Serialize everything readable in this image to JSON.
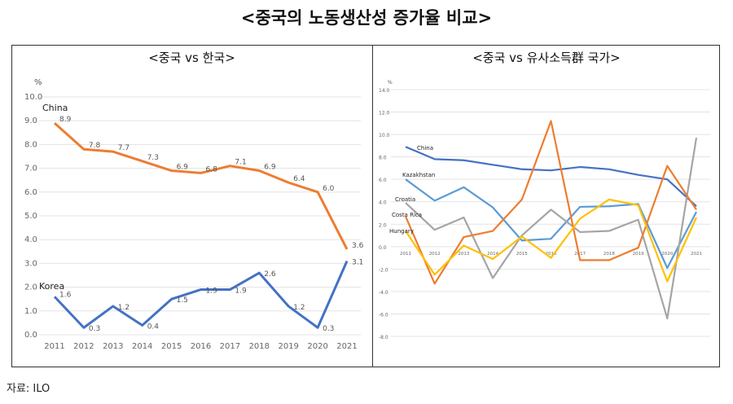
{
  "title": "<중국의 노동생산성 증가율 비교>",
  "source": "자료: ILO",
  "chart_data": [
    {
      "type": "line",
      "title": "<중국 vs 한국>",
      "ylabel": "%",
      "ylim": [
        0,
        10
      ],
      "yticks": [
        "0.0",
        "1.0",
        "2.0",
        "3.0",
        "4.0",
        "5.0",
        "6.0",
        "7.0",
        "8.0",
        "9.0",
        "10.0"
      ],
      "grid": true,
      "categories": [
        "2011",
        "2012",
        "2013",
        "2014",
        "2015",
        "2016",
        "2017",
        "2018",
        "2019",
        "2020",
        "2021"
      ],
      "series": [
        {
          "name": "China",
          "color": "#ED7D31",
          "values": [
            8.9,
            7.8,
            7.7,
            7.3,
            6.9,
            6.8,
            7.1,
            6.9,
            6.4,
            6.0,
            3.6
          ],
          "labels": [
            "8.9",
            "7.8",
            "7.7",
            "7.3",
            "6.9",
            "6.8",
            "7.1",
            "6.9",
            "6.4",
            "6.0",
            "3.6"
          ]
        },
        {
          "name": "Korea",
          "color": "#4472C4",
          "values": [
            1.6,
            0.3,
            1.2,
            0.4,
            1.5,
            1.9,
            1.9,
            2.6,
            1.2,
            0.3,
            3.1
          ],
          "labels": [
            "1.6",
            "0.3",
            "1.2",
            "0.4",
            "1.5",
            "1.9",
            "1.9",
            "2.6",
            "1.2",
            "0.3",
            "3.1"
          ]
        }
      ]
    },
    {
      "type": "line",
      "title": "<중국 vs 유사소득群 국가>",
      "ylabel": "%",
      "ylim": [
        -8,
        14
      ],
      "yticks": [
        "-8.0",
        "-6.0",
        "-4.0",
        "-2.0",
        "0.0",
        "2.0",
        "4.0",
        "6.0",
        "8.0",
        "10.0",
        "12.0",
        "14.0"
      ],
      "grid": true,
      "categories": [
        "2011",
        "2012",
        "2013",
        "2014",
        "2015",
        "2016",
        "2017",
        "2018",
        "2019",
        "2020",
        "2021"
      ],
      "series": [
        {
          "name": "China",
          "color": "#4472C4",
          "values": [
            8.9,
            7.8,
            7.7,
            7.3,
            6.9,
            6.8,
            7.1,
            6.9,
            6.4,
            6.0,
            3.6
          ]
        },
        {
          "name": "Kazakhstan",
          "color": "#5B9BD5",
          "values": [
            6.0,
            4.1,
            5.3,
            3.5,
            0.55,
            0.7,
            3.55,
            3.6,
            3.8,
            -1.9,
            3.1
          ]
        },
        {
          "name": "Croatia",
          "color": "#A5A5A5",
          "values": [
            3.9,
            1.5,
            2.6,
            -2.8,
            1.0,
            3.3,
            1.3,
            1.4,
            2.4,
            -6.4,
            9.7
          ]
        },
        {
          "name": "Costa Rica",
          "color": "#ED7D31",
          "values": [
            2.7,
            -3.3,
            0.85,
            1.4,
            4.2,
            11.2,
            -1.2,
            -1.2,
            -0.1,
            7.2,
            3.3
          ]
        },
        {
          "name": "Hungary",
          "color": "#FFC000",
          "values": [
            1.4,
            -2.5,
            0.1,
            -1.1,
            0.9,
            -1.0,
            2.5,
            4.2,
            3.7,
            -3.1,
            2.6
          ]
        }
      ]
    }
  ]
}
